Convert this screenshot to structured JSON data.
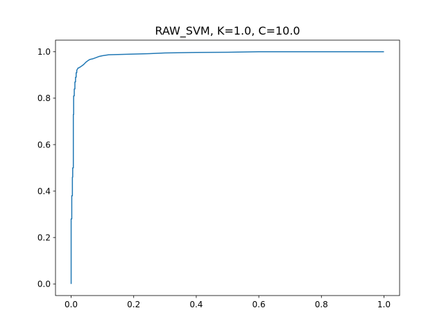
{
  "chart_data": {
    "type": "line",
    "title": "RAW_SVM, K=1.0, C=10.0",
    "xlabel": "",
    "ylabel": "",
    "xlim": [
      -0.05,
      1.05
    ],
    "ylim": [
      -0.05,
      1.05
    ],
    "grid": false,
    "legend": "none",
    "x_ticks": [
      {
        "value": 0.0,
        "label": "0.0"
      },
      {
        "value": 0.2,
        "label": "0.2"
      },
      {
        "value": 0.4,
        "label": "0.4"
      },
      {
        "value": 0.6,
        "label": "0.6"
      },
      {
        "value": 0.8,
        "label": "0.8"
      },
      {
        "value": 1.0,
        "label": "1.0"
      }
    ],
    "y_ticks": [
      {
        "value": 0.0,
        "label": "0.0"
      },
      {
        "value": 0.2,
        "label": "0.2"
      },
      {
        "value": 0.4,
        "label": "0.4"
      },
      {
        "value": 0.6,
        "label": "0.6"
      },
      {
        "value": 0.8,
        "label": "0.8"
      },
      {
        "value": 1.0,
        "label": "1.0"
      }
    ],
    "series": [
      {
        "color": "#1f77b4",
        "x": [
          0.0,
          0.0,
          0.002,
          0.002,
          0.004,
          0.004,
          0.005,
          0.005,
          0.007,
          0.007,
          0.008,
          0.008,
          0.01,
          0.01,
          0.012,
          0.012,
          0.014,
          0.014,
          0.016,
          0.016,
          0.018,
          0.018,
          0.02,
          0.022,
          0.024,
          0.026,
          0.03,
          0.035,
          0.04,
          0.045,
          0.05,
          0.055,
          0.06,
          0.07,
          0.08,
          0.09,
          0.1,
          0.12,
          0.15,
          0.2,
          0.25,
          0.3,
          0.4,
          0.5,
          0.6,
          0.8,
          1.0
        ],
        "y": [
          0.0,
          0.28,
          0.28,
          0.38,
          0.38,
          0.46,
          0.46,
          0.5,
          0.5,
          0.73,
          0.73,
          0.81,
          0.81,
          0.84,
          0.84,
          0.87,
          0.87,
          0.89,
          0.89,
          0.91,
          0.91,
          0.92,
          0.925,
          0.93,
          0.93,
          0.932,
          0.935,
          0.94,
          0.945,
          0.952,
          0.958,
          0.963,
          0.967,
          0.97,
          0.975,
          0.98,
          0.983,
          0.987,
          0.988,
          0.99,
          0.992,
          0.995,
          0.997,
          0.998,
          1.0,
          1.0,
          1.0
        ]
      }
    ]
  }
}
